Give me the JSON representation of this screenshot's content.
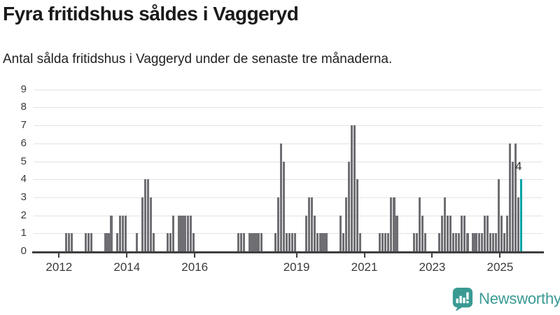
{
  "title": "Fyra fritidshus såldes i Vaggeryd",
  "subtitle": "Antal sålda fritidshus i Vaggeryd under de senaste tre månaderna.",
  "branding": {
    "logo_text": "Newsworthy",
    "logo_icon": "bar-chart-speech-bubble-icon"
  },
  "colors": {
    "bar": "#6e6e73",
    "highlight": "#00a3a4",
    "gridline": "#e3e3e3",
    "axis_line": "#3f3f3f",
    "title_text": "#1a1a1a",
    "axis_text": "#3a3a3a",
    "brand_teal": "#3a9a93"
  },
  "chart_data": {
    "type": "bar",
    "title": "Fyra fritidshus såldes i Vaggeryd",
    "subtitle": "Antal sålda fritidshus i Vaggeryd under de senaste tre månaderna.",
    "xlabel": "",
    "ylabel": "",
    "ylim": [
      0,
      9
    ],
    "y_ticks": [
      0,
      1,
      2,
      3,
      4,
      5,
      6,
      7,
      8,
      9
    ],
    "x_tick_labels": [
      "2012",
      "2014",
      "2016",
      "2019",
      "2021",
      "2023",
      "2025"
    ],
    "grid": true,
    "legend": "none",
    "start_month": "2011-04",
    "end_month": "2026-03",
    "zero_months_omitted": true,
    "highlight": {
      "month": "2025-08",
      "value": 4,
      "label": "4"
    },
    "monthly_values": [
      {
        "month": "2012-03",
        "value": 1
      },
      {
        "month": "2012-04",
        "value": 1
      },
      {
        "month": "2012-05",
        "value": 1
      },
      {
        "month": "2012-10",
        "value": 1
      },
      {
        "month": "2012-11",
        "value": 1
      },
      {
        "month": "2012-12",
        "value": 1
      },
      {
        "month": "2013-05",
        "value": 1
      },
      {
        "month": "2013-06",
        "value": 1
      },
      {
        "month": "2013-07",
        "value": 2
      },
      {
        "month": "2013-09",
        "value": 1
      },
      {
        "month": "2013-10",
        "value": 2
      },
      {
        "month": "2013-11",
        "value": 2
      },
      {
        "month": "2013-12",
        "value": 2
      },
      {
        "month": "2014-04",
        "value": 1
      },
      {
        "month": "2014-06",
        "value": 3
      },
      {
        "month": "2014-07",
        "value": 4
      },
      {
        "month": "2014-08",
        "value": 4
      },
      {
        "month": "2014-09",
        "value": 3
      },
      {
        "month": "2014-10",
        "value": 1
      },
      {
        "month": "2015-03",
        "value": 1
      },
      {
        "month": "2015-04",
        "value": 1
      },
      {
        "month": "2015-05",
        "value": 2
      },
      {
        "month": "2015-07",
        "value": 2
      },
      {
        "month": "2015-08",
        "value": 2
      },
      {
        "month": "2015-09",
        "value": 2
      },
      {
        "month": "2015-10",
        "value": 2
      },
      {
        "month": "2015-11",
        "value": 2
      },
      {
        "month": "2015-12",
        "value": 1
      },
      {
        "month": "2017-04",
        "value": 1
      },
      {
        "month": "2017-05",
        "value": 1
      },
      {
        "month": "2017-06",
        "value": 1
      },
      {
        "month": "2017-08",
        "value": 1
      },
      {
        "month": "2017-09",
        "value": 1
      },
      {
        "month": "2017-10",
        "value": 1
      },
      {
        "month": "2017-11",
        "value": 1
      },
      {
        "month": "2017-12",
        "value": 1
      },
      {
        "month": "2018-05",
        "value": 1
      },
      {
        "month": "2018-06",
        "value": 3
      },
      {
        "month": "2018-07",
        "value": 6
      },
      {
        "month": "2018-08",
        "value": 5
      },
      {
        "month": "2018-09",
        "value": 1
      },
      {
        "month": "2018-10",
        "value": 1
      },
      {
        "month": "2018-11",
        "value": 1
      },
      {
        "month": "2018-12",
        "value": 1
      },
      {
        "month": "2019-04",
        "value": 2
      },
      {
        "month": "2019-05",
        "value": 3
      },
      {
        "month": "2019-06",
        "value": 3
      },
      {
        "month": "2019-07",
        "value": 2
      },
      {
        "month": "2019-08",
        "value": 1
      },
      {
        "month": "2019-09",
        "value": 1
      },
      {
        "month": "2019-10",
        "value": 1
      },
      {
        "month": "2019-11",
        "value": 1
      },
      {
        "month": "2020-04",
        "value": 2
      },
      {
        "month": "2020-05",
        "value": 1
      },
      {
        "month": "2020-06",
        "value": 3
      },
      {
        "month": "2020-07",
        "value": 5
      },
      {
        "month": "2020-08",
        "value": 7
      },
      {
        "month": "2020-09",
        "value": 7
      },
      {
        "month": "2020-10",
        "value": 4
      },
      {
        "month": "2020-11",
        "value": 1
      },
      {
        "month": "2021-06",
        "value": 1
      },
      {
        "month": "2021-07",
        "value": 1
      },
      {
        "month": "2021-08",
        "value": 1
      },
      {
        "month": "2021-09",
        "value": 1
      },
      {
        "month": "2021-10",
        "value": 3
      },
      {
        "month": "2021-11",
        "value": 3
      },
      {
        "month": "2021-12",
        "value": 2
      },
      {
        "month": "2022-06",
        "value": 1
      },
      {
        "month": "2022-07",
        "value": 1
      },
      {
        "month": "2022-08",
        "value": 3
      },
      {
        "month": "2022-09",
        "value": 2
      },
      {
        "month": "2022-10",
        "value": 1
      },
      {
        "month": "2023-03",
        "value": 1
      },
      {
        "month": "2023-04",
        "value": 2
      },
      {
        "month": "2023-05",
        "value": 3
      },
      {
        "month": "2023-06",
        "value": 2
      },
      {
        "month": "2023-07",
        "value": 2
      },
      {
        "month": "2023-08",
        "value": 1
      },
      {
        "month": "2023-09",
        "value": 1
      },
      {
        "month": "2023-10",
        "value": 1
      },
      {
        "month": "2023-11",
        "value": 2
      },
      {
        "month": "2023-12",
        "value": 2
      },
      {
        "month": "2024-01",
        "value": 1
      },
      {
        "month": "2024-03",
        "value": 1
      },
      {
        "month": "2024-04",
        "value": 1
      },
      {
        "month": "2024-05",
        "value": 1
      },
      {
        "month": "2024-06",
        "value": 1
      },
      {
        "month": "2024-07",
        "value": 2
      },
      {
        "month": "2024-08",
        "value": 2
      },
      {
        "month": "2024-09",
        "value": 1
      },
      {
        "month": "2024-10",
        "value": 1
      },
      {
        "month": "2024-11",
        "value": 1
      },
      {
        "month": "2024-12",
        "value": 4
      },
      {
        "month": "2025-01",
        "value": 2
      },
      {
        "month": "2025-02",
        "value": 1
      },
      {
        "month": "2025-03",
        "value": 2
      },
      {
        "month": "2025-04",
        "value": 6
      },
      {
        "month": "2025-05",
        "value": 5
      },
      {
        "month": "2025-06",
        "value": 6
      },
      {
        "month": "2025-07",
        "value": 3
      },
      {
        "month": "2025-08",
        "value": 4
      }
    ]
  }
}
